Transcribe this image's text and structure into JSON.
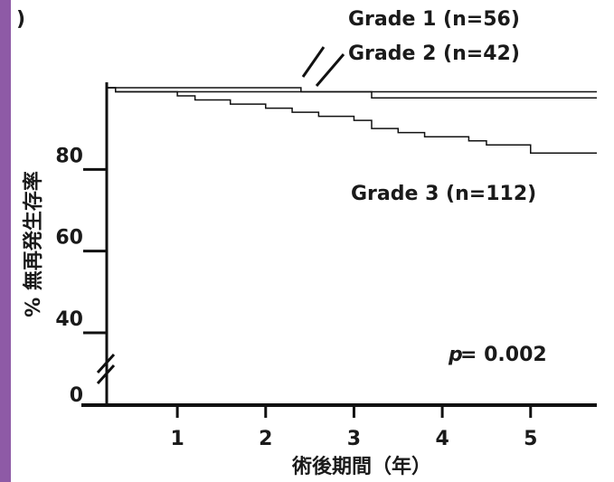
{
  "chart_data": {
    "type": "step",
    "panel_label": ")",
    "y_label": "% 無再発生存率",
    "x_label": "術後期間（年）",
    "annotations": [
      "p",
      "= 0.002"
    ],
    "xlim": [
      0.2,
      5.75
    ],
    "xticks": [
      1,
      2,
      3,
      4,
      5
    ],
    "ylim": [
      0,
      100
    ],
    "yticks": [
      0,
      40,
      60,
      80
    ],
    "axis_break": true,
    "series": [
      {
        "name": "Grade 1 (n=56)",
        "color": "#111111",
        "x": [
          0.2,
          2.4,
          5.75
        ],
        "values": [
          100,
          99,
          99
        ]
      },
      {
        "name": "Grade 2 (n=42)",
        "color": "#111111",
        "x": [
          0.2,
          0.3,
          3.2,
          5.75
        ],
        "values": [
          100,
          99,
          97.5,
          97.5
        ]
      },
      {
        "name": "Grade 3 (n=112)",
        "color": "#111111",
        "x": [
          0.2,
          0.3,
          1.0,
          1.2,
          1.6,
          2.0,
          2.3,
          2.6,
          3.0,
          3.2,
          3.5,
          3.8,
          4.3,
          4.5,
          5.0,
          5.75
        ],
        "values": [
          100,
          99,
          98,
          97,
          96,
          95,
          94,
          93,
          92,
          90,
          89,
          88,
          87,
          86,
          84,
          84
        ]
      }
    ]
  }
}
